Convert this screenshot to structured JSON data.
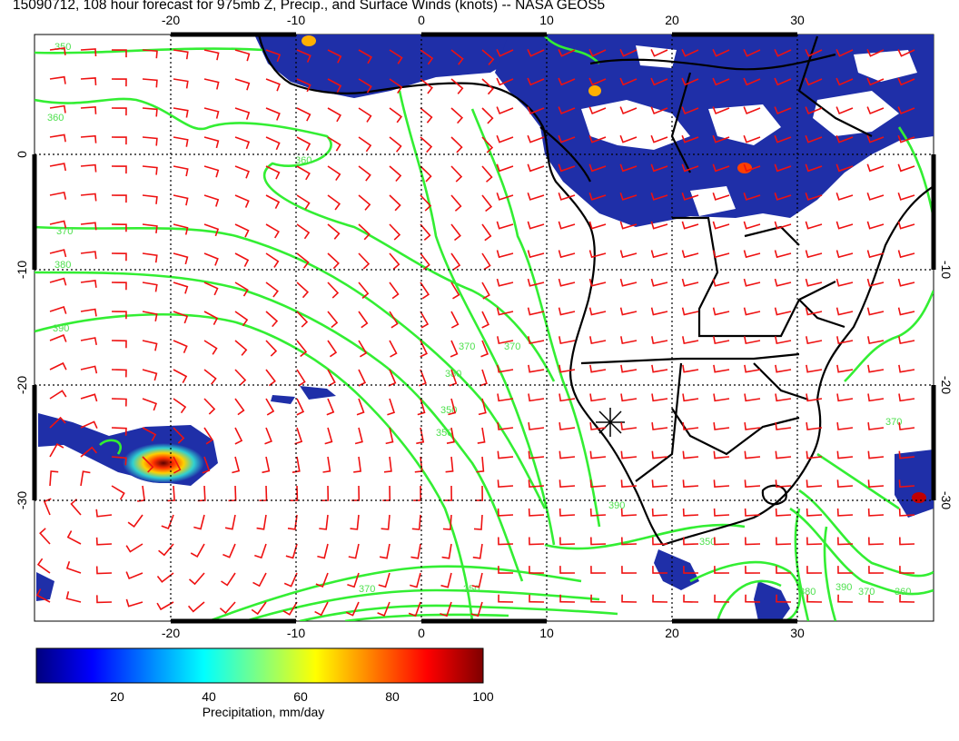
{
  "title": "15090712, 108 hour forecast for 975mb Z, Precip., and Surface Winds (knots) -- NASA GEOS5",
  "map": {
    "lon_ticks": [
      "-20",
      "-10",
      "0",
      "10",
      "20",
      "30"
    ],
    "lat_ticks": [
      "0",
      "-10",
      "-20",
      "-30"
    ],
    "contour_labels": [
      "350",
      "360",
      "360",
      "370",
      "380",
      "390",
      "370",
      "370",
      "380",
      "350",
      "350",
      "390",
      "350",
      "370",
      "350",
      "380",
      "390",
      "370",
      "360",
      "370"
    ],
    "colors": {
      "contour": "#33ee33",
      "wind_barb": "#ee1111",
      "coastline": "#000000",
      "precip_low": "#1f2fa8"
    }
  },
  "colorbar": {
    "label": "Precipitation, mm/day",
    "ticks": [
      "20",
      "40",
      "60",
      "80",
      "100"
    ],
    "colors": [
      "#00007f",
      "#0000ff",
      "#0080ff",
      "#00ffff",
      "#80ff80",
      "#ffff00",
      "#ff8000",
      "#ff0000",
      "#7f0000"
    ]
  }
}
